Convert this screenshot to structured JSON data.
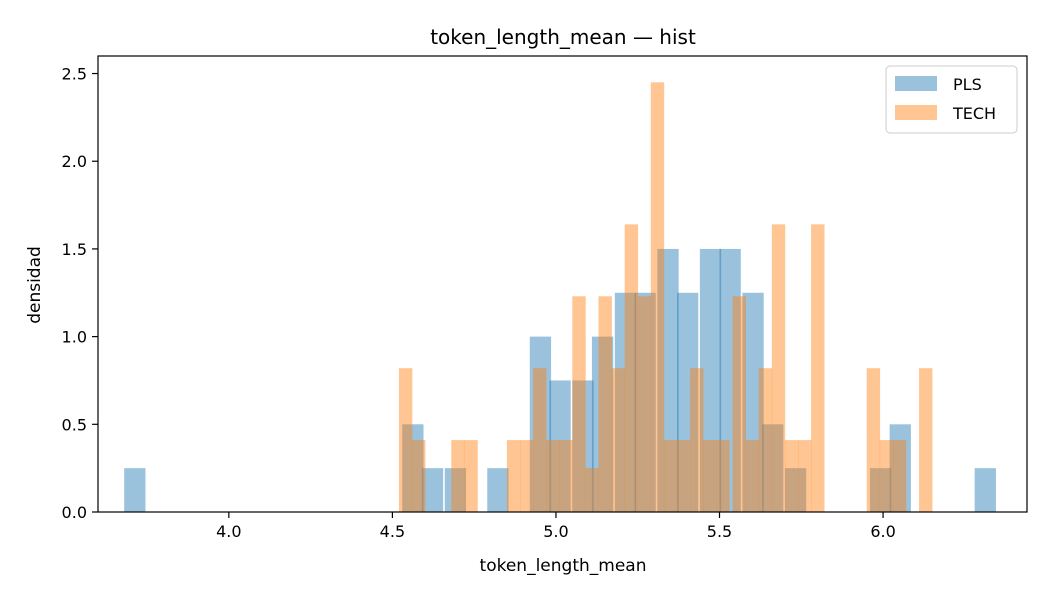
{
  "chart_data": {
    "type": "bar",
    "title": "token_length_mean — hist",
    "xlabel": "token_length_mean",
    "ylabel": "densidad",
    "xlim": [
      3.6,
      6.44
    ],
    "ylim": [
      0,
      2.6
    ],
    "x_ticks": [
      4.0,
      4.5,
      5.0,
      5.5,
      6.0
    ],
    "x_tick_labels": [
      "4.0",
      "4.5",
      "5.0",
      "5.5",
      "6.0"
    ],
    "y_ticks": [
      0.0,
      0.5,
      1.0,
      1.5,
      2.0,
      2.5
    ],
    "y_tick_labels": [
      "0.0",
      "0.5",
      "1.0",
      "1.5",
      "2.0",
      "2.5"
    ],
    "grid": false,
    "legend_position": "top-right",
    "series": [
      {
        "name": "PLS",
        "color": "#1f77b4",
        "opacity": 0.45,
        "bin_width": 0.0651,
        "bins": [
          [
            3.68,
            0.25
          ],
          [
            4.53,
            0.5
          ],
          [
            4.59,
            0.25
          ],
          [
            4.66,
            0.25
          ],
          [
            4.79,
            0.25
          ],
          [
            4.92,
            1.0
          ],
          [
            4.98,
            0.75
          ],
          [
            5.05,
            0.75
          ],
          [
            5.11,
            1.0
          ],
          [
            5.18,
            1.25
          ],
          [
            5.24,
            1.25
          ],
          [
            5.31,
            1.5
          ],
          [
            5.37,
            1.25
          ],
          [
            5.44,
            1.5
          ],
          [
            5.5,
            1.5
          ],
          [
            5.57,
            1.25
          ],
          [
            5.63,
            0.5
          ],
          [
            5.7,
            0.25
          ],
          [
            5.96,
            0.25
          ],
          [
            6.02,
            0.5
          ],
          [
            6.28,
            0.25
          ]
        ]
      },
      {
        "name": "TECH",
        "color": "#ff7f0e",
        "opacity": 0.45,
        "bin_width": 0.0409,
        "bins": [
          [
            4.52,
            0.82
          ],
          [
            4.56,
            0.41
          ],
          [
            4.68,
            0.41
          ],
          [
            4.72,
            0.41
          ],
          [
            4.85,
            0.41
          ],
          [
            4.89,
            0.41
          ],
          [
            4.93,
            0.82
          ],
          [
            4.97,
            0.41
          ],
          [
            5.01,
            0.41
          ],
          [
            5.05,
            1.23
          ],
          [
            5.09,
            0.25
          ],
          [
            5.13,
            1.23
          ],
          [
            5.17,
            0.82
          ],
          [
            5.21,
            1.64
          ],
          [
            5.25,
            1.23
          ],
          [
            5.29,
            2.45
          ],
          [
            5.33,
            0.41
          ],
          [
            5.37,
            0.41
          ],
          [
            5.41,
            0.82
          ],
          [
            5.45,
            0.41
          ],
          [
            5.49,
            0.41
          ],
          [
            5.54,
            1.23
          ],
          [
            5.58,
            0.41
          ],
          [
            5.62,
            0.82
          ],
          [
            5.66,
            1.64
          ],
          [
            5.7,
            0.41
          ],
          [
            5.74,
            0.41
          ],
          [
            5.78,
            1.64
          ],
          [
            5.95,
            0.82
          ],
          [
            5.99,
            0.41
          ],
          [
            6.03,
            0.41
          ],
          [
            6.11,
            0.82
          ]
        ]
      }
    ]
  }
}
